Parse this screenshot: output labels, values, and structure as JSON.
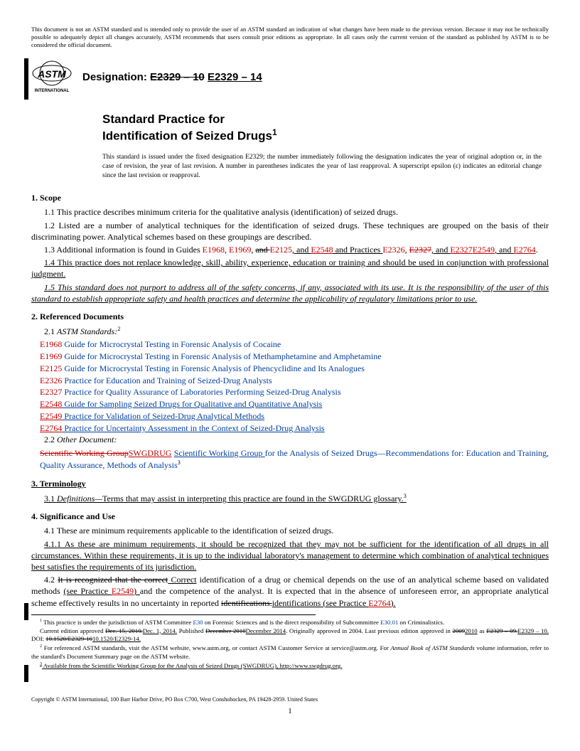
{
  "disclaimer": "This document is not an ASTM standard and is intended only to provide the user of an ASTM standard an indication of what changes have been made to the previous version. Because it may not be technically possible to adequately depict all changes accurately, ASTM recommends that users consult prior editions as appropriate. In all cases only the current version of the standard as published by ASTM is to be considered the official document.",
  "designation_label": "Designation: ",
  "designation_old": "E2329 – 10",
  "designation_new": "E2329 – 14",
  "title_l1": "Standard Practice for",
  "title_l2": "Identification of Seized Drugs",
  "title_sup": "1",
  "standard_note": "This standard is issued under the fixed designation E2329; the number immediately following the designation indicates the year of original adoption or, in the case of revision, the year of last revision. A number in parentheses indicates the year of last reapproval. A superscript epsilon (ε) indicates an editorial change since the last revision or reapproval.",
  "s1_head": "1. Scope",
  "s1_1": "1.1 This practice describes minimum criteria for the qualitative analysis (identification) of seized drugs.",
  "s1_2": "1.2 Listed are a number of analytical techniques for the identification of seized drugs. These techniques are grouped on the basis of their discriminating power. Analytical schemes based on these groupings are described.",
  "s1_3_a": "1.3 Additional information is found in Guides ",
  "s1_3_b": ", and ",
  "s1_3_c": " and Practices ",
  "s1_3_d": ", and ",
  "s1_4": "1.4 This practice does not replace knowledge, skill, ability, experience, education or training and should be used in conjunction with professional judgment.",
  "s1_5": "1.5 This standard does not purport to address all of the safety concerns, if any, associated with its use. It is the responsibility of the user of this standard to establish appropriate safety and health practices and determine the applicability of regulatory limitations prior to use.",
  "s2_head": "2. Referenced Documents",
  "s2_1": "2.1 ",
  "s2_1_i": "ASTM Standards:",
  "refs": [
    {
      "code": "E1968",
      "new": false,
      "text": "Guide for Microcrystal Testing in Forensic Analysis of Cocaine"
    },
    {
      "code": "E1969",
      "new": false,
      "text": "Guide for Microcrystal Testing in Forensic Analysis of Methamphetamine and Amphetamine"
    },
    {
      "code": "E2125",
      "new": false,
      "text": "Guide for Microcrystal Testing in Forensic Analysis of Phencyclidine and Its Analogues"
    },
    {
      "code": "E2326",
      "new": false,
      "text": "Practice for Education and Training of Seized-Drug Analysts"
    },
    {
      "code": "E2327",
      "new": false,
      "text": "Practice for Quality Assurance of Laboratories Performing Seized-Drug Analysis"
    },
    {
      "code": "E2548",
      "new": true,
      "text": "Guide for Sampling Seized Drugs for Qualitative and Quantitative Analysis"
    },
    {
      "code": "E2549",
      "new": true,
      "text": "Practice for Validation of Seized-Drug Analytical Methods"
    },
    {
      "code": "E2764",
      "new": true,
      "text": "Practice for Uncertainty Assessment in the Context of Seized-Drug Analysis"
    }
  ],
  "s2_2": "2.2 ",
  "s2_2_i": "Other Document:",
  "s2_2_old": "Scientific Working Group",
  "s2_2_new1": "SWGDRUG",
  "s2_2_new2": "Scientific Working Group ",
  "s2_2_rest": "for the Analysis of Seized Drugs—Recommendations for: Education and Training, Quality Assurance, Methods of Analysis",
  "s3_head": "3. Terminology",
  "s3_1_a": "3.1 ",
  "s3_1_i": "Definitions—",
  "s3_1_b": "Terms that may assist in interpreting this practice are found in the SWGDRUG glossary.",
  "s4_head": "4. Significance and Use",
  "s4_1": "4.1 These are minimum requirements applicable to the identification of seized drugs.",
  "s4_1_1": "4.1.1 As these are minimum requirements, it should be recognized that they may not be sufficient for the identification of all drugs in all circumstances. Within these requirements, it is up to the individual laboratory's management to determine which combination of analytical techniques best satisfies the requirements of its jurisdiction.",
  "s4_2_a": "4.2 ",
  "s4_2_old": "It is recognized that the correct",
  "s4_2_new": " Correct",
  "s4_2_b": " identification of a drug or chemical depends on the use of an analytical scheme based on validated methods ",
  "s4_2_new2": "(see Practice ",
  "s4_2_ref": "E2549",
  "s4_2_new3": ") ",
  "s4_2_c": "and the competence of the analyst. It is expected that in the absence of unforeseen error, an appropriate analytical scheme effectively results in no uncertainty in reported ",
  "s4_2_old2": "identifications.",
  "s4_2_new4": "identifications (see Practice ",
  "s4_2_ref2": "E2764",
  "s4_2_new5": ").",
  "fn1_a": " This practice is under the jurisdiction of ASTM Committee ",
  "fn1_l1": "E30",
  "fn1_b": " on Forensic Sciences and is the direct responsibility of Subcommittee ",
  "fn1_l2": "E30.01",
  "fn1_c": " on Criminalistics.",
  "fn1_line2_a": "Current edition approved ",
  "fn1_old1": "Dec. 15, 2010.",
  "fn1_new1": "Dec. 1, 2014.",
  "fn1_line2_b": " Published ",
  "fn1_old2": "December 2010",
  "fn1_new2": "December 2014",
  "fn1_line2_c": ". Originally approved in 2004. Last previous edition approved in ",
  "fn1_old3": "2009",
  "fn1_new3": "2010",
  "fn1_line2_d": " as ",
  "fn1_old4": "E2329 – 09.",
  "fn1_new4": "E2329 – 10.",
  "fn1_line2_e": " DOI: ",
  "fn1_old5": "10.1520/E2329-10",
  "fn1_new5": "10.1520/E2329-14.",
  "fn2": " For referenced ASTM standards, visit the ASTM website, www.astm.org, or contact ASTM Customer Service at service@astm.org. For ",
  "fn2_i": "Annual Book of ASTM Standards",
  "fn2_b": " volume information, refer to the standard's Document Summary page on the ASTM website.",
  "fn3": " Available from the Scientific Working Group for the Analysis of Seized Drugs (SWGDRUG), http://www.swgdrug.org.",
  "copyright": "Copyright © ASTM International, 100 Barr Harbor Drive, PO Box C700, West Conshohocken, PA 19428-2959. United States",
  "page_num": "1",
  "codes": {
    "e1968": "E1968",
    "e1969": "E1969",
    "e2125": "E2125",
    "e2548": "E2548",
    "e2326": "E2326",
    "e2327": "E2327",
    "e2549": "E2549",
    "e2764": "E2764",
    "and": "and ",
    "comma_and": ", and "
  }
}
